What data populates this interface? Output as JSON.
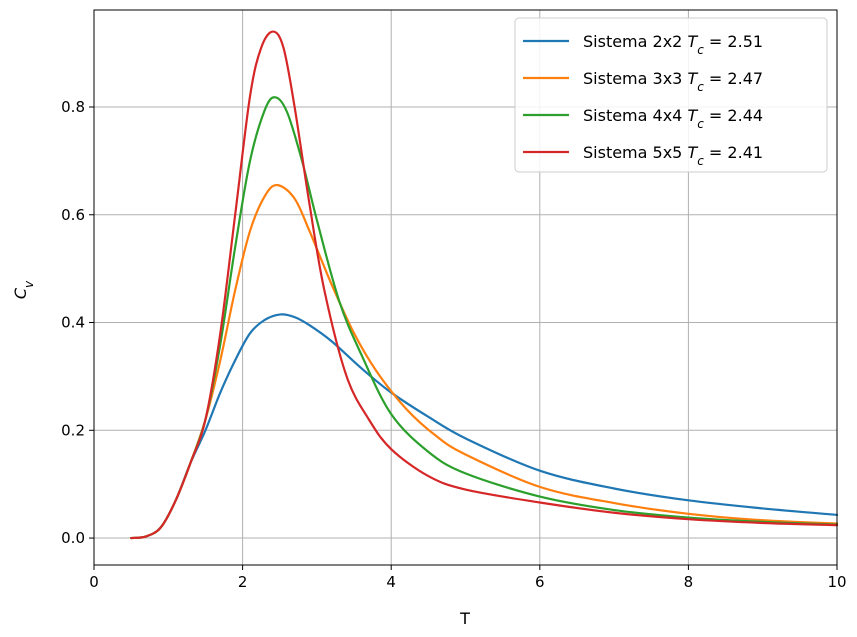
{
  "chart_data": {
    "type": "line",
    "xlabel": "T",
    "ylabel": "C",
    "ylabel_sub": "v",
    "xlim": [
      0,
      10
    ],
    "ylim": [
      -0.05,
      0.98
    ],
    "xticks": [
      0,
      2,
      4,
      6,
      8,
      10
    ],
    "xtick_labels": [
      "0",
      "2",
      "4",
      "6",
      "8",
      "10"
    ],
    "yticks": [
      0.0,
      0.2,
      0.4,
      0.6,
      0.8
    ],
    "ytick_labels": [
      "0.0",
      "0.2",
      "0.4",
      "0.6",
      "0.8"
    ],
    "grid": true,
    "legend_position": "top-right",
    "series": [
      {
        "name": "Sistema 2x2",
        "tc_value": "2.51",
        "color": "#1f77b4",
        "x": [
          0.5,
          0.7,
          0.9,
          1.1,
          1.3,
          1.5,
          1.7,
          1.9,
          2.1,
          2.3,
          2.51,
          2.7,
          2.9,
          3.2,
          3.6,
          4.0,
          4.5,
          5.0,
          6.0,
          7.0,
          8.0,
          9.0,
          10.0
        ],
        "values": [
          0.0,
          0.003,
          0.02,
          0.07,
          0.14,
          0.2,
          0.27,
          0.33,
          0.38,
          0.405,
          0.415,
          0.41,
          0.395,
          0.365,
          0.315,
          0.27,
          0.225,
          0.185,
          0.125,
          0.092,
          0.07,
          0.055,
          0.043
        ]
      },
      {
        "name": "Sistema 3x3",
        "tc_value": "2.47",
        "color": "#ff7f0e",
        "x": [
          0.5,
          0.7,
          0.9,
          1.1,
          1.3,
          1.5,
          1.7,
          1.9,
          2.1,
          2.3,
          2.47,
          2.7,
          2.9,
          3.2,
          3.5,
          3.8,
          4.2,
          4.6,
          5.0,
          6.0,
          7.0,
          8.0,
          9.0,
          10.0
        ],
        "values": [
          0.0,
          0.003,
          0.02,
          0.07,
          0.14,
          0.22,
          0.33,
          0.46,
          0.57,
          0.635,
          0.655,
          0.63,
          0.57,
          0.47,
          0.38,
          0.31,
          0.24,
          0.19,
          0.155,
          0.095,
          0.065,
          0.045,
          0.033,
          0.027
        ]
      },
      {
        "name": "Sistema 4x4",
        "tc_value": "2.44",
        "color": "#2ca02c",
        "x": [
          0.5,
          0.7,
          0.9,
          1.1,
          1.3,
          1.5,
          1.7,
          1.9,
          2.1,
          2.3,
          2.44,
          2.6,
          2.8,
          3.0,
          3.3,
          3.6,
          4.0,
          4.5,
          5.0,
          6.0,
          7.0,
          8.0,
          9.0,
          10.0
        ],
        "values": [
          0.0,
          0.003,
          0.02,
          0.07,
          0.14,
          0.22,
          0.36,
          0.54,
          0.7,
          0.795,
          0.818,
          0.79,
          0.7,
          0.59,
          0.44,
          0.34,
          0.23,
          0.16,
          0.12,
          0.077,
          0.052,
          0.038,
          0.03,
          0.025
        ]
      },
      {
        "name": "Sistema 5x5",
        "tc_value": "2.41",
        "color": "#d62728",
        "x": [
          0.5,
          0.7,
          0.9,
          1.1,
          1.3,
          1.5,
          1.7,
          1.9,
          2.1,
          2.25,
          2.41,
          2.55,
          2.7,
          2.9,
          3.1,
          3.4,
          3.7,
          4.0,
          4.5,
          5.0,
          6.0,
          7.0,
          8.0,
          9.0,
          10.0
        ],
        "values": [
          0.0,
          0.003,
          0.02,
          0.07,
          0.14,
          0.22,
          0.38,
          0.6,
          0.82,
          0.91,
          0.94,
          0.91,
          0.8,
          0.62,
          0.46,
          0.3,
          0.22,
          0.165,
          0.115,
          0.09,
          0.066,
          0.047,
          0.035,
          0.028,
          0.024
        ]
      }
    ]
  }
}
